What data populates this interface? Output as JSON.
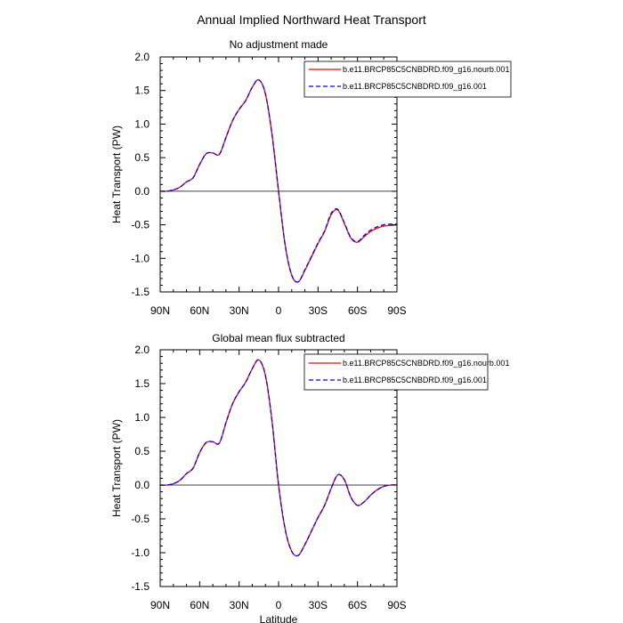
{
  "figure_title": "Annual Implied Northward Heat Transport",
  "chart_data": [
    {
      "type": "line",
      "title": "No adjustment made",
      "xlabel": "",
      "ylabel": "Heat Transport (PW)",
      "xlim": [
        90,
        -90
      ],
      "ylim": [
        -1.5,
        2.0
      ],
      "x_ticks": [
        90,
        60,
        30,
        0,
        -30,
        -60,
        -90
      ],
      "x_tick_labels": [
        "90N",
        "60N",
        "30N",
        "0",
        "30S",
        "60S",
        "90S"
      ],
      "y_ticks": [
        -1.5,
        -1.0,
        -0.5,
        0.0,
        0.5,
        1.0,
        1.5,
        2.0
      ],
      "y_tick_labels": [
        "-1.5",
        "-1.0",
        "-0.5",
        "0.0",
        "0.5",
        "1.0",
        "1.5",
        "2.0"
      ],
      "x": [
        90,
        85,
        80,
        75,
        70,
        65,
        60,
        55,
        50,
        45,
        40,
        35,
        30,
        25,
        20,
        15,
        10,
        5,
        0,
        -5,
        -10,
        -15,
        -20,
        -25,
        -30,
        -35,
        -40,
        -45,
        -50,
        -55,
        -60,
        -65,
        -70,
        -75,
        -80,
        -85,
        -90
      ],
      "series": [
        {
          "name": "b.e11.BRCP85C5CNBDRD.f09_g16.nourb.001",
          "color": "#ff0000",
          "dash": "solid",
          "values": [
            0.0,
            0.0,
            0.02,
            0.06,
            0.14,
            0.2,
            0.4,
            0.56,
            0.57,
            0.55,
            0.8,
            1.05,
            1.22,
            1.35,
            1.55,
            1.66,
            1.45,
            0.85,
            0.0,
            -0.8,
            -1.25,
            -1.35,
            -1.18,
            -0.98,
            -0.78,
            -0.6,
            -0.35,
            -0.28,
            -0.48,
            -0.7,
            -0.76,
            -0.68,
            -0.6,
            -0.55,
            -0.52,
            -0.51,
            -0.5
          ]
        },
        {
          "name": "b.e11.BRCP85C5CNBDRD.f09_g16.001",
          "color": "#0000ff",
          "dash": "dashed",
          "values": [
            0.0,
            0.0,
            0.02,
            0.06,
            0.14,
            0.2,
            0.4,
            0.56,
            0.57,
            0.55,
            0.8,
            1.05,
            1.22,
            1.35,
            1.55,
            1.66,
            1.45,
            0.85,
            0.0,
            -0.8,
            -1.25,
            -1.35,
            -1.17,
            -0.97,
            -0.77,
            -0.59,
            -0.33,
            -0.27,
            -0.47,
            -0.69,
            -0.75,
            -0.66,
            -0.58,
            -0.53,
            -0.5,
            -0.49,
            -0.49
          ]
        }
      ],
      "reference_line": 0.0
    },
    {
      "type": "line",
      "title": "Global mean flux subtracted",
      "xlabel": "Latitude",
      "ylabel": "Heat Transport (PW)",
      "xlim": [
        90,
        -90
      ],
      "ylim": [
        -1.5,
        2.0
      ],
      "x_ticks": [
        90,
        60,
        30,
        0,
        -30,
        -60,
        -90
      ],
      "x_tick_labels": [
        "90N",
        "60N",
        "30N",
        "0",
        "30S",
        "60S",
        "90S"
      ],
      "y_ticks": [
        -1.5,
        -1.0,
        -0.5,
        0.0,
        0.5,
        1.0,
        1.5,
        2.0
      ],
      "y_tick_labels": [
        "-1.5",
        "-1.0",
        "-0.5",
        "0.0",
        "0.5",
        "1.0",
        "1.5",
        "2.0"
      ],
      "x": [
        90,
        85,
        80,
        75,
        70,
        65,
        60,
        55,
        50,
        45,
        40,
        35,
        30,
        25,
        20,
        15,
        10,
        5,
        0,
        -5,
        -10,
        -15,
        -20,
        -25,
        -30,
        -35,
        -40,
        -45,
        -50,
        -55,
        -60,
        -65,
        -70,
        -75,
        -80,
        -85,
        -90
      ],
      "series": [
        {
          "name": "b.e11.BRCP85C5CNBDRD.f09_g16.nourb.001",
          "color": "#ff0000",
          "dash": "solid",
          "values": [
            0.0,
            0.0,
            0.02,
            0.07,
            0.17,
            0.25,
            0.48,
            0.63,
            0.64,
            0.62,
            0.92,
            1.2,
            1.38,
            1.52,
            1.72,
            1.85,
            1.62,
            0.95,
            0.0,
            -0.65,
            -0.98,
            -1.04,
            -0.88,
            -0.68,
            -0.48,
            -0.3,
            -0.05,
            0.15,
            0.08,
            -0.18,
            -0.3,
            -0.25,
            -0.15,
            -0.07,
            -0.02,
            0.0,
            0.0
          ]
        },
        {
          "name": "b.e11.BRCP85C5CNBDRD.f09_g16.001",
          "color": "#0000ff",
          "dash": "dashed",
          "values": [
            0.0,
            0.0,
            0.02,
            0.07,
            0.17,
            0.25,
            0.48,
            0.63,
            0.64,
            0.62,
            0.92,
            1.2,
            1.38,
            1.52,
            1.72,
            1.85,
            1.62,
            0.95,
            0.0,
            -0.65,
            -0.98,
            -1.04,
            -0.88,
            -0.68,
            -0.48,
            -0.3,
            -0.05,
            0.15,
            0.08,
            -0.18,
            -0.3,
            -0.25,
            -0.15,
            -0.07,
            -0.02,
            0.0,
            0.0
          ]
        }
      ],
      "reference_line": 0.0
    }
  ]
}
